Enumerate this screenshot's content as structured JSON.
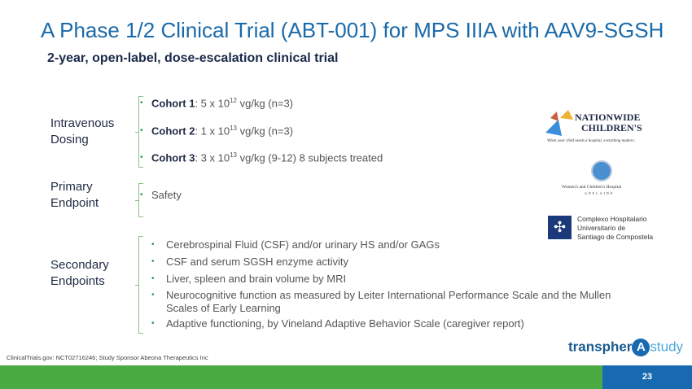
{
  "title": "A Phase 1/2 Clinical Trial (ABT-001) for MPS IIIA with AAV9-SGSH",
  "subtitle": "2-year, open-label, dose-escalation clinical trial",
  "sections": {
    "iv": {
      "label1": "Intravenous",
      "label2": "Dosing",
      "items": [
        {
          "name": "Cohort 1",
          "pre": ": 5 x 10",
          "exp": "12",
          "post": " vg/kg (n=3)"
        },
        {
          "name": "Cohort 2",
          "pre": ": 1 x 10",
          "exp": "13",
          "post": " vg/kg (n=3)"
        },
        {
          "name": "Cohort 3",
          "pre": ": 3 x 10",
          "exp": "13",
          "post": " vg/kg (9-12)  8 subjects treated"
        }
      ]
    },
    "primary": {
      "label1": "Primary",
      "label2": "Endpoint",
      "items": [
        "Safety"
      ]
    },
    "secondary": {
      "label1": "Secondary",
      "label2": "Endpoints",
      "items": [
        "Cerebrospinal Fluid (CSF) and/or urinary HS and/or GAGs",
        "CSF and serum SGSH enzyme activity",
        "Liver, spleen and brain volume by MRI",
        "Neurocognitive function as measured by Leiter International Performance Scale and the Mullen Scales of Early Learning",
        "Adaptive functioning, by Vineland Adaptive Behavior Scale (caregiver report)"
      ]
    }
  },
  "bullet": "•",
  "logos": {
    "nationwide": {
      "line1": "NATIONWIDE",
      "line2": "CHILDREN'S",
      "tagline": "When your child needs a hospital, everything matters."
    },
    "adelaide": {
      "line1": "Women's and Children's Hospital",
      "line2": "ADELAIDE"
    },
    "santiago": {
      "line1": "Complexo Hospitalario",
      "line2": "Universitario de",
      "line3": "Santiago de Compostela"
    }
  },
  "brand": {
    "left": "transpher",
    "mid": "A",
    "right": "study"
  },
  "footnote": "ClinicalTrials.gov: NCT02716246; Study Sponsor Abeona Therapeutics Inc",
  "page_number": "23",
  "colors": {
    "title": "#1a6aaa",
    "green": "#4aab43",
    "blue": "#1769b0"
  }
}
